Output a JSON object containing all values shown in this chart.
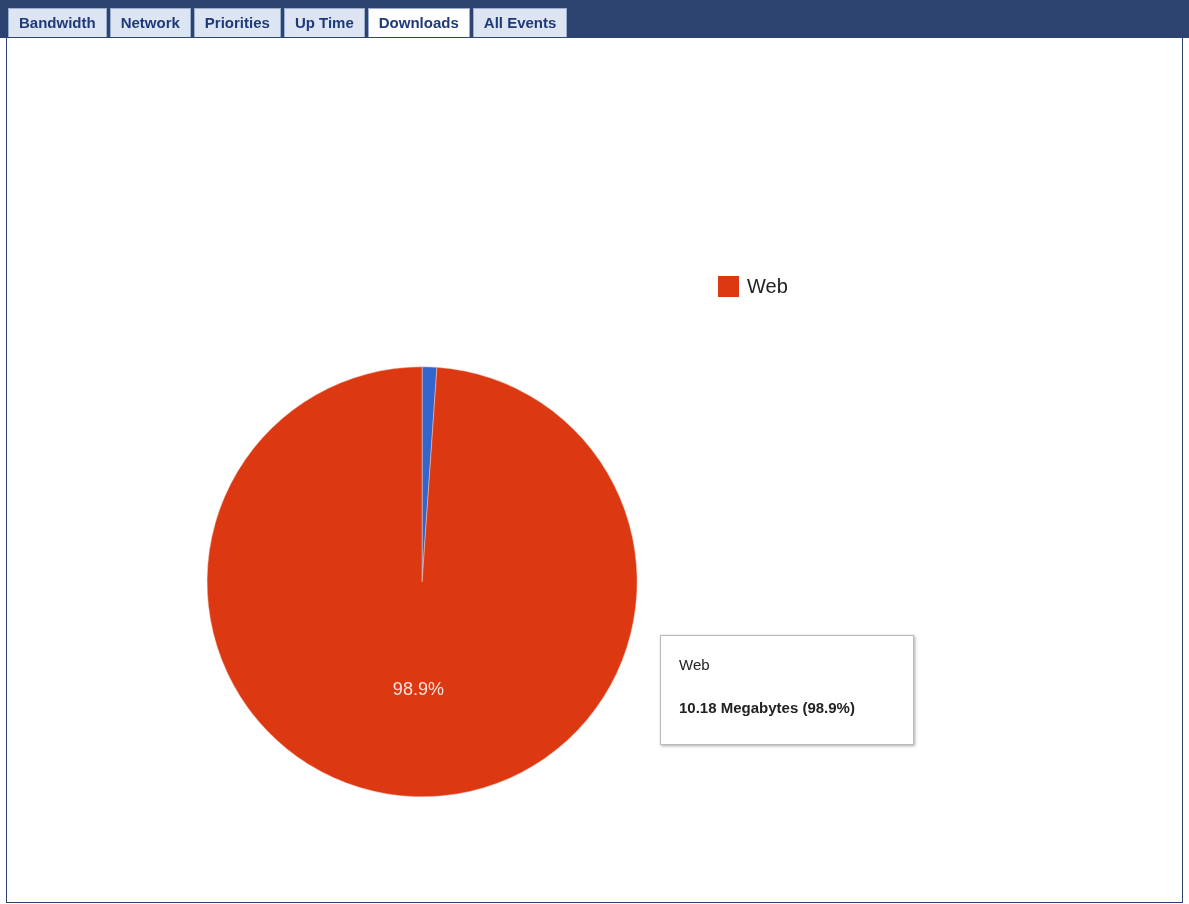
{
  "chart_data": {
    "type": "pie",
    "categories": [
      null,
      "Web"
    ],
    "values": [
      1.1,
      98.9
    ],
    "colors": [
      "#3366cc",
      "#dc3912"
    ],
    "value_labels": [
      null,
      "98.9%"
    ],
    "legend": "right",
    "annotations": [
      "Bandwidth",
      "Network",
      "Priorities",
      "Up Time",
      "Downloads",
      "All Events",
      "Web",
      "10.18 Megabytes (98.9%)"
    ]
  }
}
